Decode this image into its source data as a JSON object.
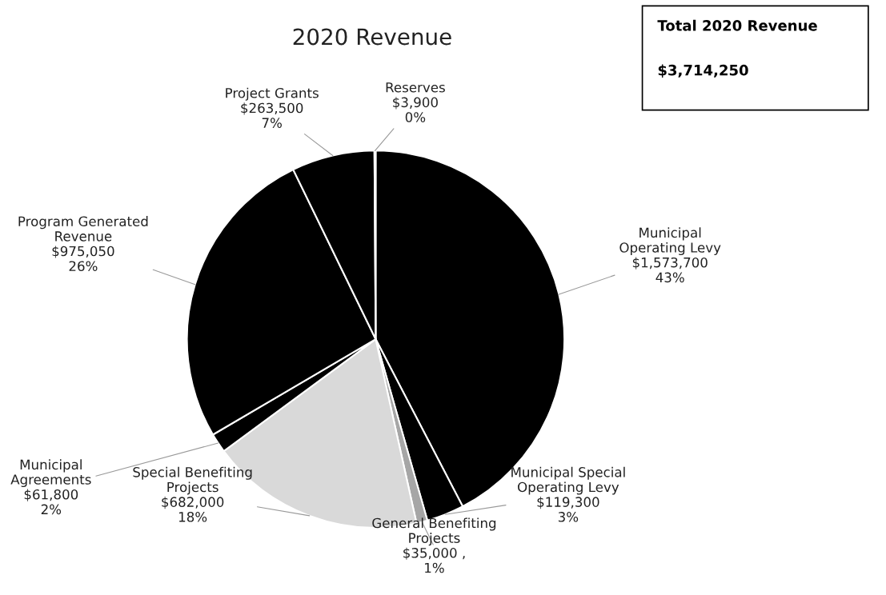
{
  "chart_data": {
    "type": "pie",
    "title": "2020 Revenue",
    "categories": [
      "Municipal\nOperating Levy",
      "Municipal Special\nOperating Levy",
      "General Benefiting\nProjects",
      "Special Benefiting\nProjects",
      "Municipal\nAgreements",
      "Program Generated\nRevenue",
      "Project Grants",
      "Reserves"
    ],
    "values": [
      1573700,
      119300,
      35000,
      682000,
      61800,
      975050,
      263500,
      3900
    ],
    "value_labels": [
      "$1,573,700\n43%",
      "$119,300\n3%",
      "$35,000 ,\n1%",
      "$682,000\n18%",
      "$61,800\n2%",
      "$975,050\n26%",
      "$263,500\n7%",
      "$3,900\n0%"
    ],
    "colors": [
      "#000000",
      "#000000",
      "#a6a6a6",
      "#d9d9d9",
      "#000000",
      "#000000",
      "#000000",
      "#f2f2f2"
    ],
    "annotations": [
      "Total 2020 Revenue",
      "$3,714,250"
    ],
    "legend": false
  }
}
